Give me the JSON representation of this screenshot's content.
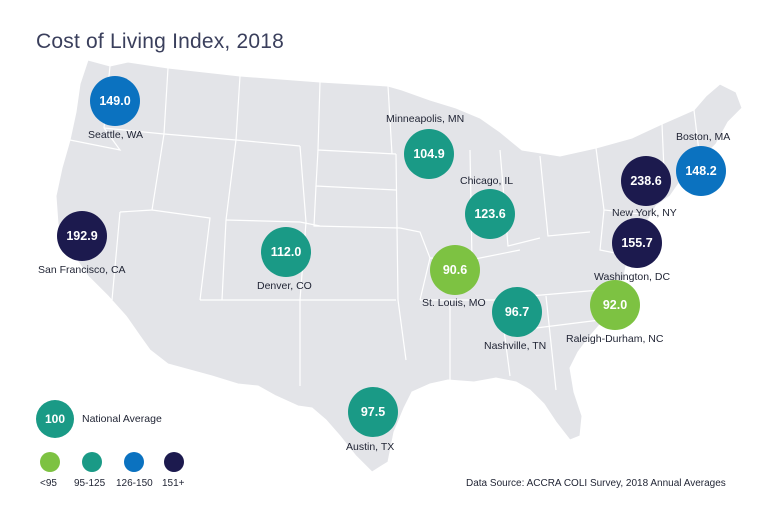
{
  "title": "Cost of Living Index, 2018",
  "source": "Data Source: ACCRA COLI Survey, 2018 Annual Averages",
  "colors": {
    "map_fill": "#e3e4e8",
    "map_border": "#ffffff",
    "tier_low": "#7dc242",
    "tier_mid": "#1a9a86",
    "tier_high": "#0b72c0",
    "tier_top": "#1c1a4e"
  },
  "legend": {
    "average_value": "100",
    "average_label": "National Average",
    "tiers": [
      {
        "label": "<95",
        "color": "#7dc242"
      },
      {
        "label": "95-125",
        "color": "#1a9a86"
      },
      {
        "label": "126-150",
        "color": "#0b72c0"
      },
      {
        "label": "151+",
        "color": "#1c1a4e"
      }
    ]
  },
  "cities": [
    {
      "name": "Seattle, WA",
      "value": "149.0",
      "color": "#0b72c0"
    },
    {
      "name": "Minneapolis, MN",
      "value": "104.9",
      "color": "#1a9a86"
    },
    {
      "name": "Boston, MA",
      "value": "148.2",
      "color": "#0b72c0"
    },
    {
      "name": "Chicago, IL",
      "value": "123.6",
      "color": "#1a9a86"
    },
    {
      "name": "New York, NY",
      "value": "238.6",
      "color": "#1c1a4e"
    },
    {
      "name": "San Francisco, CA",
      "value": "192.9",
      "color": "#1c1a4e"
    },
    {
      "name": "Denver, CO",
      "value": "112.0",
      "color": "#1a9a86"
    },
    {
      "name": "St. Louis, MO",
      "value": "90.6",
      "color": "#7dc242"
    },
    {
      "name": "Washington, DC",
      "value": "155.7",
      "color": "#1c1a4e"
    },
    {
      "name": "Nashville, TN",
      "value": "96.7",
      "color": "#1a9a86"
    },
    {
      "name": "Raleigh-Durham, NC",
      "value": "92.0",
      "color": "#7dc242"
    },
    {
      "name": "Austin, TX",
      "value": "97.5",
      "color": "#1a9a86"
    }
  ]
}
